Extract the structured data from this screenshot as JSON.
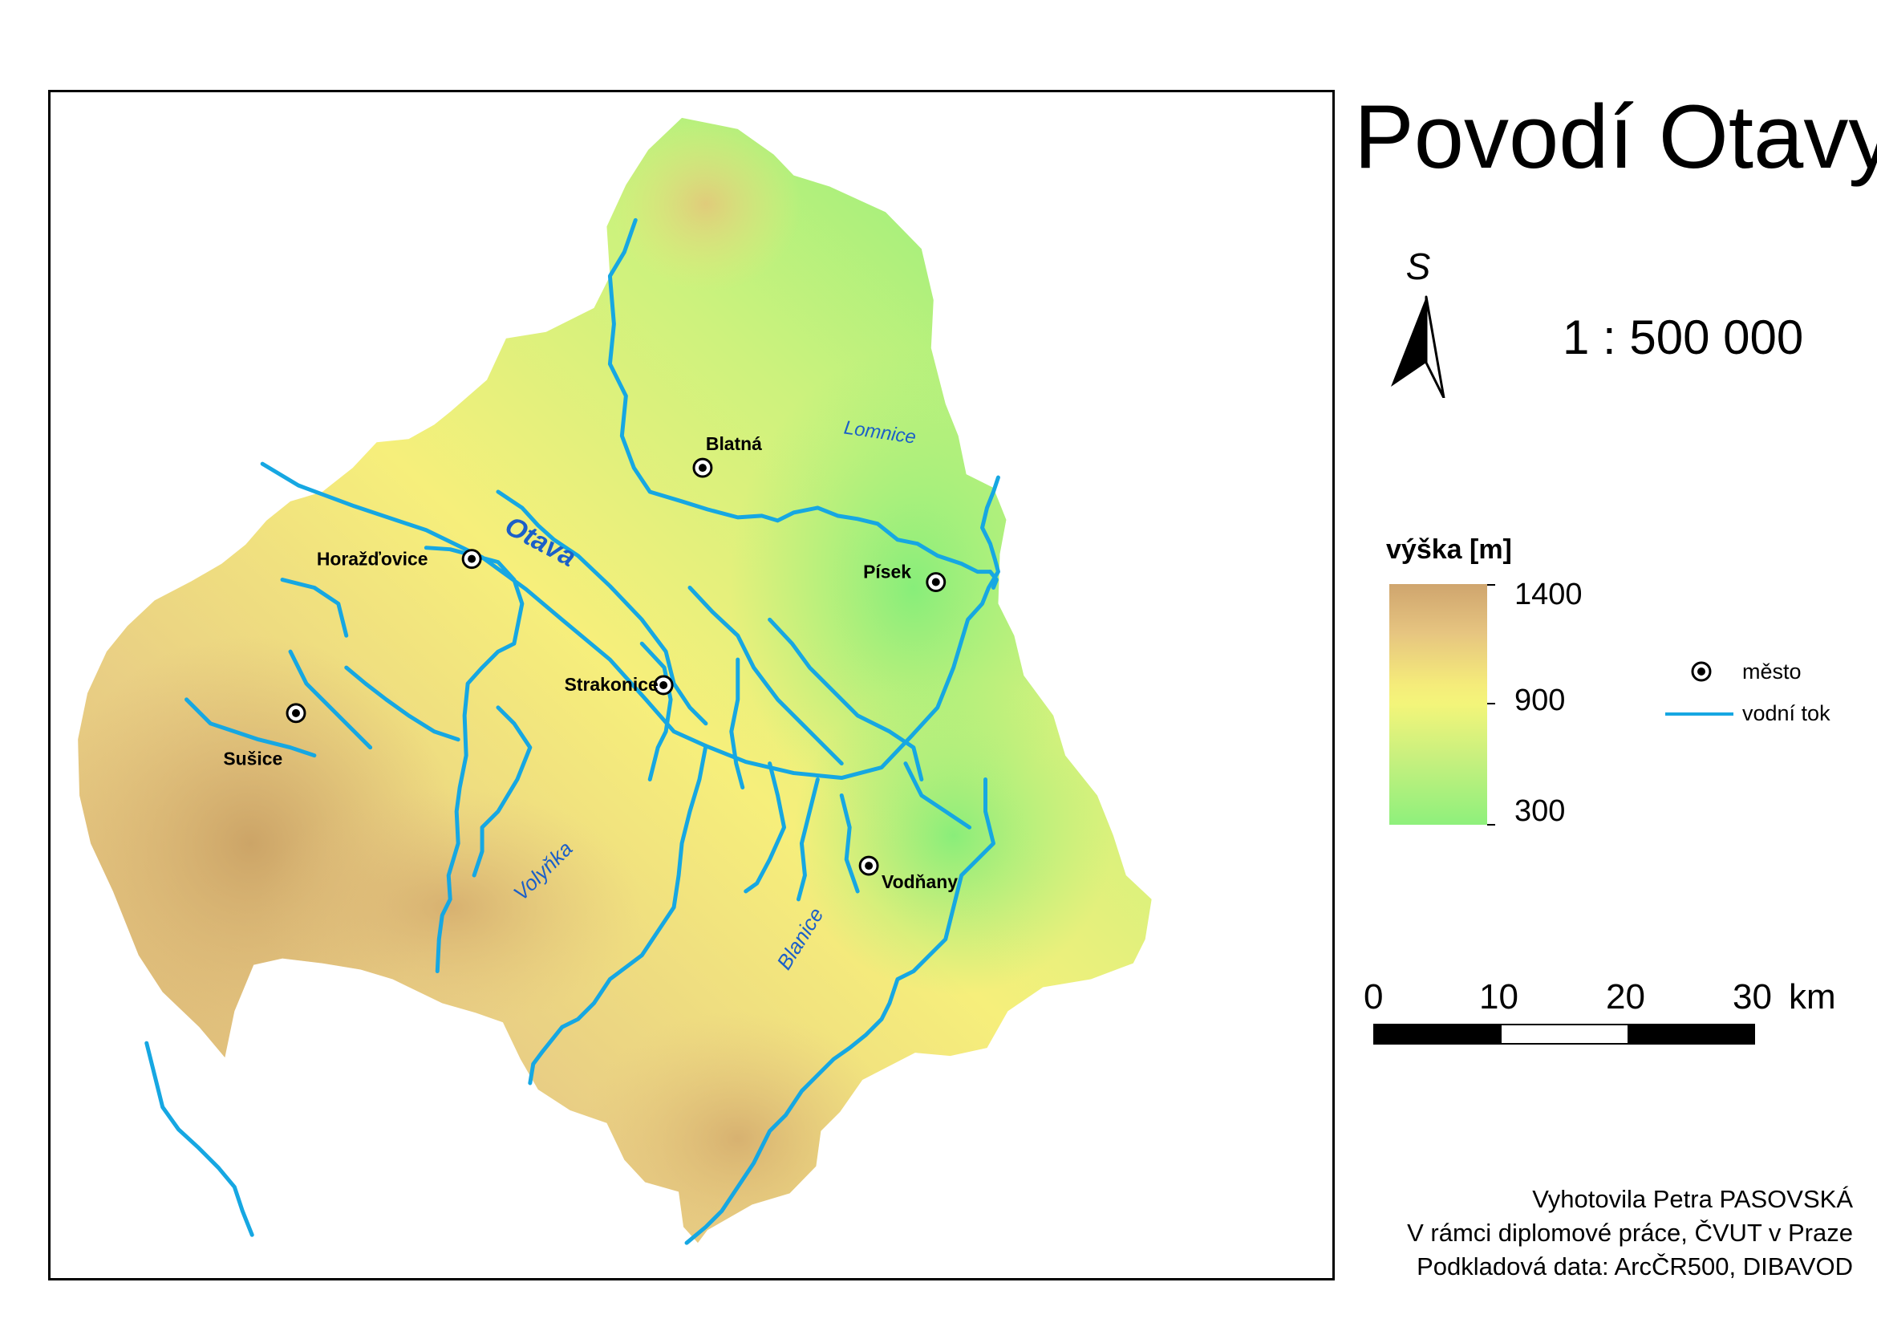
{
  "title": "Povodí Otavy",
  "north_arrow": {
    "letter": "S"
  },
  "scale": {
    "ratio": "1 : 500 000",
    "labels": [
      "0",
      "10",
      "20",
      "30"
    ],
    "unit": "km"
  },
  "elevation_legend": {
    "title": "výška [m]",
    "labels": [
      "1400",
      "900",
      "300"
    ],
    "colors": {
      "high": "#cfa56e",
      "mid": "#f5ec7a",
      "low": "#8ef07c"
    }
  },
  "symbol_legend": {
    "city": "město",
    "river": "vodní tok"
  },
  "colors": {
    "river": "#16a7e2",
    "river_label": "#1b5fc8"
  },
  "cities": [
    {
      "name": "Blatná"
    },
    {
      "name": "Horažďovice"
    },
    {
      "name": "Písek"
    },
    {
      "name": "Strakonice"
    },
    {
      "name": "Sušice"
    },
    {
      "name": "Vodňany"
    }
  ],
  "rivers": [
    {
      "name": "Otava"
    },
    {
      "name": "Lomnice"
    },
    {
      "name": "Volyňka"
    },
    {
      "name": "Blanice"
    }
  ],
  "credits": [
    "Vyhotovila Petra PASOVSKÁ",
    "V rámci diplomové práce, ČVUT v Praze",
    "Podkladová data: ArcČR500, DIBAVOD"
  ]
}
